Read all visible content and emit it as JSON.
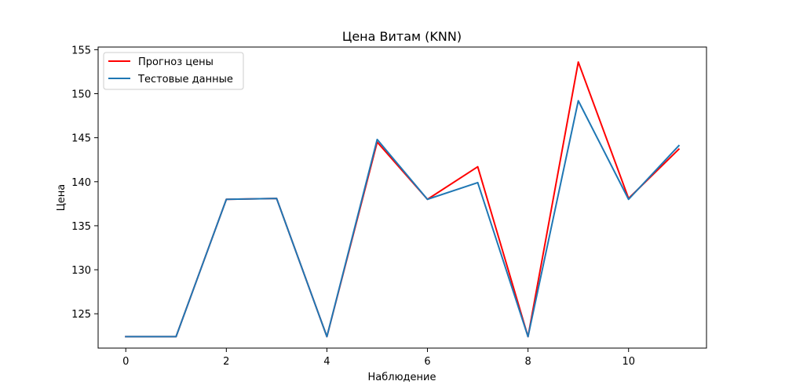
{
  "chart_data": {
    "type": "line",
    "title": "Цена Витам  (KNN)",
    "xlabel": "Наблюдение",
    "ylabel": "Цена",
    "xlim": [
      -0.55,
      11.55
    ],
    "ylim": [
      121.1,
      155.3
    ],
    "xticks": [
      0,
      2,
      4,
      6,
      8,
      10
    ],
    "yticks": [
      125,
      130,
      135,
      140,
      145,
      150,
      155
    ],
    "x": [
      0,
      1,
      2,
      3,
      4,
      5,
      6,
      7,
      8,
      9,
      10,
      11
    ],
    "series": [
      {
        "name": "Прогноз цены",
        "color": "#ff0000",
        "values": [
          122.4,
          122.4,
          138.0,
          138.1,
          122.4,
          144.5,
          138.0,
          141.7,
          122.4,
          153.6,
          138.1,
          143.7
        ]
      },
      {
        "name": "Тестовые данные",
        "color": "#1f77b4",
        "values": [
          122.4,
          122.4,
          138.0,
          138.1,
          122.4,
          144.8,
          138.0,
          139.9,
          122.4,
          149.2,
          138.0,
          144.1
        ]
      }
    ],
    "legend_position": "top-left",
    "grid": false
  }
}
